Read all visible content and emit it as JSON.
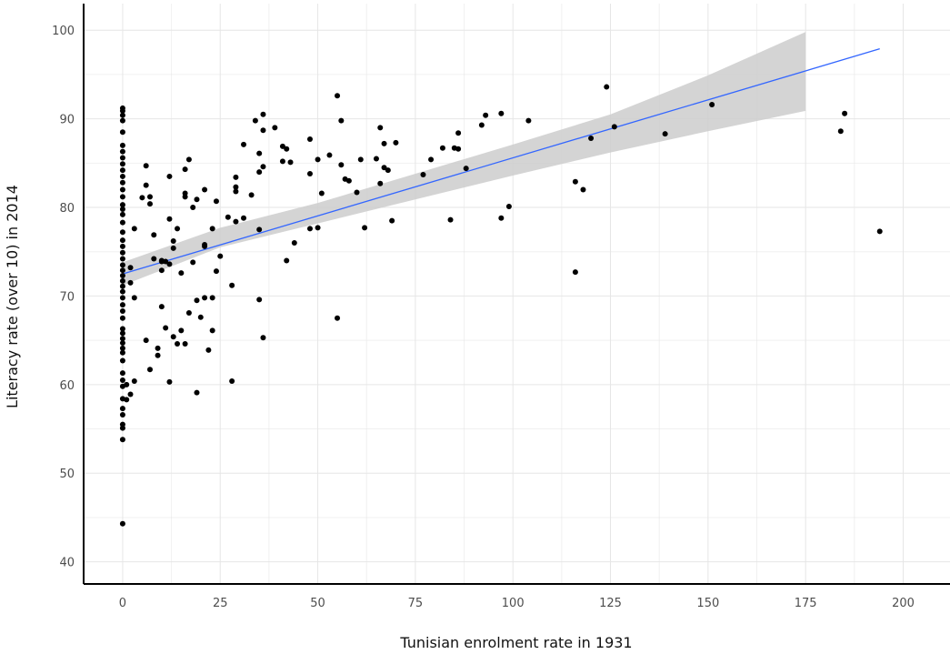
{
  "chart_data": {
    "type": "scatter",
    "xlabel": "Tunisian enrolment rate in 1931",
    "ylabel": "Literacy rate (over 10) in 2014",
    "xlim": [
      -10,
      212
    ],
    "ylim": [
      37.5,
      103
    ],
    "x_ticks": [
      0,
      25,
      50,
      75,
      100,
      125,
      150,
      175,
      200
    ],
    "y_ticks": [
      40,
      50,
      60,
      70,
      80,
      90,
      100
    ],
    "grid": true,
    "point_color": "#000000",
    "fit_line": {
      "color": "#3366ff",
      "x": [
        0,
        194
      ],
      "y": [
        72.5,
        97.9
      ]
    },
    "confidence_band": {
      "color": "#cccccc",
      "x": [
        0,
        25,
        50,
        75,
        100,
        125,
        150,
        175
      ],
      "lower": [
        71.2,
        75.5,
        78.2,
        80.9,
        83.6,
        86.2,
        88.6,
        90.9
      ],
      "upper": [
        73.8,
        77.7,
        80.5,
        83.8,
        87.1,
        90.5,
        94.9,
        99.8
      ]
    },
    "points": [
      [
        0,
        44.3
      ],
      [
        0,
        53.8
      ],
      [
        0,
        55.1
      ],
      [
        0,
        55.5
      ],
      [
        0,
        56.6
      ],
      [
        0,
        57.3
      ],
      [
        0,
        58.4
      ],
      [
        0,
        59.8
      ],
      [
        0,
        60.5
      ],
      [
        0,
        61.3
      ],
      [
        0,
        62.7
      ],
      [
        0,
        63.6
      ],
      [
        0,
        64.1
      ],
      [
        0,
        64.7
      ],
      [
        0,
        65.2
      ],
      [
        0,
        65.8
      ],
      [
        0,
        66.3
      ],
      [
        0,
        67.5
      ],
      [
        0,
        68.3
      ],
      [
        0,
        69.0
      ],
      [
        0,
        69.8
      ],
      [
        0,
        70.5
      ],
      [
        0,
        71.1
      ],
      [
        0,
        71.7
      ],
      [
        0,
        72.3
      ],
      [
        0,
        72.9
      ],
      [
        0,
        73.5
      ],
      [
        0,
        74.2
      ],
      [
        0,
        74.9
      ],
      [
        0,
        75.6
      ],
      [
        0,
        76.3
      ],
      [
        0,
        77.2
      ],
      [
        0,
        78.3
      ],
      [
        0,
        79.2
      ],
      [
        0,
        79.8
      ],
      [
        0,
        80.3
      ],
      [
        0,
        81.2
      ],
      [
        0,
        82.0
      ],
      [
        0,
        82.8
      ],
      [
        0,
        83.5
      ],
      [
        0,
        84.2
      ],
      [
        0,
        84.9
      ],
      [
        0,
        85.6
      ],
      [
        0,
        86.3
      ],
      [
        0,
        87.0
      ],
      [
        0,
        88.5
      ],
      [
        0,
        89.8
      ],
      [
        0,
        90.4
      ],
      [
        0,
        90.9
      ],
      [
        0,
        91.2
      ],
      [
        1,
        58.3
      ],
      [
        1,
        60.0
      ],
      [
        2,
        58.9
      ],
      [
        2,
        73.2
      ],
      [
        2,
        71.5
      ],
      [
        3,
        60.4
      ],
      [
        3,
        69.8
      ],
      [
        3,
        77.6
      ],
      [
        5,
        81.1
      ],
      [
        6,
        84.7
      ],
      [
        6,
        82.5
      ],
      [
        6,
        65.0
      ],
      [
        7,
        80.4
      ],
      [
        7,
        81.2
      ],
      [
        7,
        61.7
      ],
      [
        8,
        74.2
      ],
      [
        8,
        76.9
      ],
      [
        9,
        63.3
      ],
      [
        9,
        64.1
      ],
      [
        10,
        68.8
      ],
      [
        10,
        73.9
      ],
      [
        10,
        74.0
      ],
      [
        10,
        72.9
      ],
      [
        11,
        66.4
      ],
      [
        11,
        73.9
      ],
      [
        12,
        83.5
      ],
      [
        12,
        78.7
      ],
      [
        12,
        73.6
      ],
      [
        12,
        60.3
      ],
      [
        13,
        76.2
      ],
      [
        13,
        75.4
      ],
      [
        13,
        65.4
      ],
      [
        14,
        77.6
      ],
      [
        14,
        64.6
      ],
      [
        15,
        72.6
      ],
      [
        15,
        66.1
      ],
      [
        16,
        84.3
      ],
      [
        16,
        81.6
      ],
      [
        16,
        81.2
      ],
      [
        16,
        64.6
      ],
      [
        17,
        68.1
      ],
      [
        17,
        85.4
      ],
      [
        18,
        80.0
      ],
      [
        18,
        73.8
      ],
      [
        19,
        80.9
      ],
      [
        19,
        69.5
      ],
      [
        19,
        59.1
      ],
      [
        20,
        67.6
      ],
      [
        21,
        75.8
      ],
      [
        21,
        75.6
      ],
      [
        21,
        69.8
      ],
      [
        21,
        82.0
      ],
      [
        22,
        63.9
      ],
      [
        23,
        69.8
      ],
      [
        23,
        77.6
      ],
      [
        23,
        66.1
      ],
      [
        24,
        80.7
      ],
      [
        24,
        72.8
      ],
      [
        25,
        74.5
      ],
      [
        27,
        78.9
      ],
      [
        28,
        71.2
      ],
      [
        28,
        60.4
      ],
      [
        29,
        82.3
      ],
      [
        29,
        81.8
      ],
      [
        29,
        78.4
      ],
      [
        29,
        83.4
      ],
      [
        31,
        78.8
      ],
      [
        31,
        87.1
      ],
      [
        33,
        81.4
      ],
      [
        34,
        89.8
      ],
      [
        35,
        84.0
      ],
      [
        35,
        86.1
      ],
      [
        35,
        69.6
      ],
      [
        35,
        77.5
      ],
      [
        36,
        88.7
      ],
      [
        36,
        90.5
      ],
      [
        36,
        84.6
      ],
      [
        36,
        65.3
      ],
      [
        39,
        89.0
      ],
      [
        41,
        86.9
      ],
      [
        41,
        85.2
      ],
      [
        42,
        86.6
      ],
      [
        42,
        74.0
      ],
      [
        43,
        85.1
      ],
      [
        44,
        76.0
      ],
      [
        48,
        87.7
      ],
      [
        48,
        83.8
      ],
      [
        48,
        77.6
      ],
      [
        50,
        85.4
      ],
      [
        50,
        77.7
      ],
      [
        51,
        81.6
      ],
      [
        53,
        85.9
      ],
      [
        55,
        92.6
      ],
      [
        55,
        67.5
      ],
      [
        56,
        89.8
      ],
      [
        56,
        84.8
      ],
      [
        57,
        83.2
      ],
      [
        58,
        83.0
      ],
      [
        60,
        81.7
      ],
      [
        61,
        85.4
      ],
      [
        62,
        77.7
      ],
      [
        65,
        85.5
      ],
      [
        66,
        89.0
      ],
      [
        66,
        82.7
      ],
      [
        67,
        87.2
      ],
      [
        67,
        84.5
      ],
      [
        68,
        84.2
      ],
      [
        69,
        78.5
      ],
      [
        70,
        87.3
      ],
      [
        77,
        83.7
      ],
      [
        79,
        85.4
      ],
      [
        82,
        86.7
      ],
      [
        84,
        78.6
      ],
      [
        85,
        86.7
      ],
      [
        86,
        86.6
      ],
      [
        86,
        88.4
      ],
      [
        88,
        84.4
      ],
      [
        92,
        89.3
      ],
      [
        93,
        90.4
      ],
      [
        97,
        78.8
      ],
      [
        97,
        90.6
      ],
      [
        99,
        80.1
      ],
      [
        104,
        89.8
      ],
      [
        116,
        82.9
      ],
      [
        116,
        72.7
      ],
      [
        118,
        82.0
      ],
      [
        120,
        87.8
      ],
      [
        124,
        93.6
      ],
      [
        126,
        89.1
      ],
      [
        139,
        88.3
      ],
      [
        151,
        91.6
      ],
      [
        184,
        88.6
      ],
      [
        185,
        90.6
      ],
      [
        194,
        77.3
      ]
    ]
  }
}
